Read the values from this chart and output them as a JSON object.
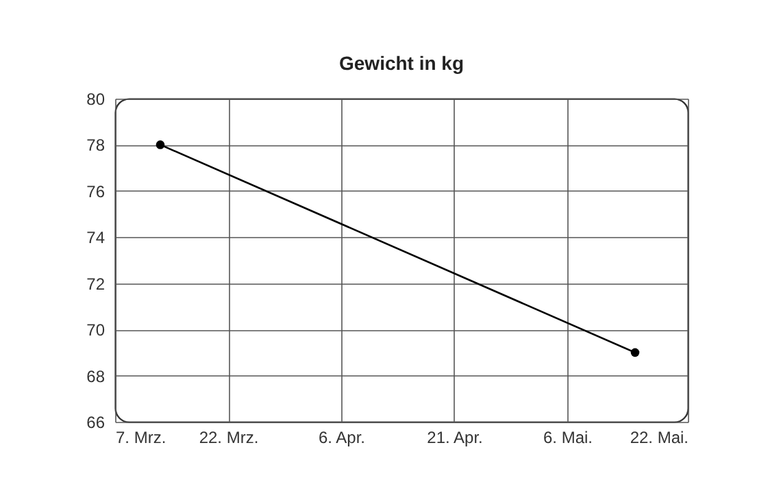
{
  "chart_data": {
    "type": "line",
    "title": "Gewicht in kg",
    "x": [
      "--03-13",
      "--05-15"
    ],
    "series": [
      {
        "color": "#000000",
        "values": [
          78,
          69
        ]
      }
    ],
    "xlim": [
      "--03-07",
      "--05-22"
    ],
    "xticks": [
      {
        "value": "--03-07",
        "label": "7. Mrz."
      },
      {
        "value": "--03-22",
        "label": "22. Mrz."
      },
      {
        "value": "--04-06",
        "label": "6. Apr."
      },
      {
        "value": "--04-21",
        "label": "21. Apr."
      },
      {
        "value": "--05-06",
        "label": "6. Mai."
      },
      {
        "value": "--05-22",
        "label": "22. Mai."
      }
    ],
    "ylim": [
      66,
      80
    ],
    "yticks": [
      66,
      68,
      70,
      72,
      74,
      76,
      78,
      80
    ],
    "grid": true,
    "marker": "circle",
    "line_style": "solid"
  }
}
